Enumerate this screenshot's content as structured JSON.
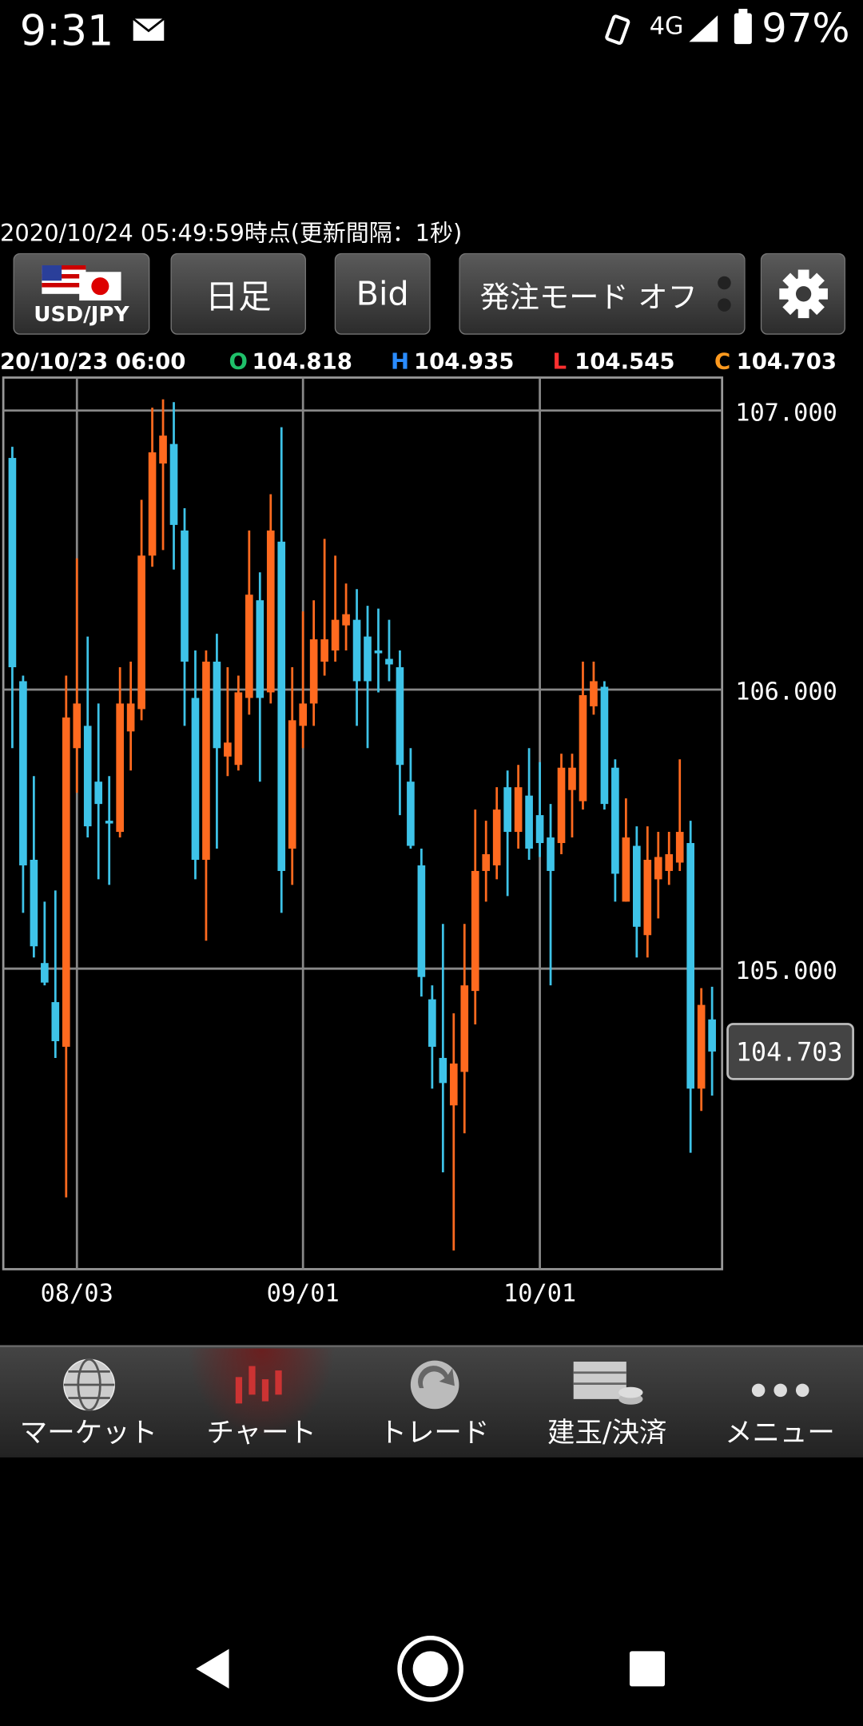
{
  "status_bar": {
    "time": "9:31",
    "network": "4G",
    "battery": "97%"
  },
  "timestamp": "2020/10/24  05:49:59時点(更新間隔：1秒)",
  "toolbar": {
    "pair": "USD/JPY",
    "period": "日足",
    "price_type": "Bid",
    "order_mode": "発注モード オフ"
  },
  "ohlc_header": {
    "date": "20/10/23 06:00",
    "o_label": "O",
    "o": "104.818",
    "h_label": "H",
    "h": "104.935",
    "l_label": "L",
    "l": "104.545",
    "c_label": "C",
    "c": "104.703"
  },
  "chart_data": {
    "type": "candlestick",
    "up_color": "#ff6a1f",
    "down_color": "#3ec3e8",
    "grid": true,
    "categories": [
      null,
      null,
      null,
      null,
      null,
      null,
      "08/03",
      null,
      null,
      null,
      null,
      null,
      null,
      null,
      null,
      null,
      null,
      null,
      null,
      null,
      null,
      null,
      null,
      null,
      null,
      null,
      null,
      "09/01",
      null,
      null,
      null,
      null,
      null,
      null,
      null,
      null,
      null,
      null,
      null,
      null,
      null,
      null,
      null,
      null,
      null,
      null,
      null,
      null,
      null,
      "10/01",
      null,
      null,
      null,
      null,
      null,
      null,
      null,
      null,
      null,
      null,
      null,
      null,
      null,
      null,
      null,
      null
    ],
    "open": [
      106.83,
      106.03,
      105.39,
      105.02,
      104.88,
      104.72,
      105.79,
      105.87,
      105.67,
      105.53,
      105.49,
      105.85,
      105.93,
      106.48,
      106.81,
      106.88,
      106.57,
      105.97,
      105.39,
      106.1,
      105.76,
      105.73,
      105.97,
      106.32,
      105.99,
      106.53,
      105.43,
      105.87,
      105.95,
      106.1,
      106.14,
      106.23,
      106.25,
      106.19,
      106.14,
      106.11,
      106.08,
      105.67,
      105.37,
      104.89,
      104.68,
      104.51,
      104.63,
      104.92,
      105.35,
      105.37,
      105.65,
      105.49,
      105.62,
      105.55,
      105.47,
      105.45,
      105.64,
      105.6,
      105.94,
      106.01,
      105.72,
      105.24,
      105.44,
      105.12,
      105.32,
      105.35,
      105.38,
      105.45,
      104.57,
      104.818
    ],
    "high": [
      106.87,
      106.05,
      105.69,
      105.24,
      105.28,
      106.05,
      106.47,
      106.19,
      105.95,
      105.69,
      106.08,
      106.1,
      106.68,
      107.01,
      107.04,
      107.03,
      106.65,
      106.14,
      106.14,
      106.2,
      106.08,
      106.05,
      106.57,
      106.42,
      106.7,
      106.94,
      106.08,
      106.28,
      106.32,
      106.54,
      106.48,
      106.38,
      106.36,
      106.3,
      106.29,
      106.25,
      106.14,
      105.79,
      105.43,
      104.94,
      105.16,
      104.84,
      105.16,
      105.57,
      105.53,
      105.65,
      105.71,
      105.73,
      105.79,
      105.74,
      105.59,
      105.77,
      105.77,
      106.1,
      106.1,
      106.03,
      105.75,
      105.61,
      105.51,
      105.51,
      105.49,
      105.49,
      105.75,
      105.53,
      104.93,
      104.935
    ],
    "low": [
      105.79,
      105.2,
      105.04,
      104.94,
      104.68,
      104.18,
      105.63,
      105.47,
      105.32,
      105.3,
      105.47,
      105.71,
      105.89,
      106.44,
      106.5,
      106.43,
      105.87,
      105.32,
      105.1,
      105.43,
      105.69,
      105.71,
      105.91,
      105.67,
      105.95,
      105.2,
      105.3,
      105.79,
      105.87,
      106.05,
      106.1,
      106.14,
      105.87,
      105.79,
      105.99,
      106.03,
      105.55,
      105.43,
      104.9,
      104.57,
      104.27,
      103.99,
      104.41,
      104.8,
      105.24,
      105.32,
      105.26,
      105.43,
      105.39,
      105.4,
      104.94,
      105.41,
      105.47,
      105.57,
      105.91,
      105.57,
      105.24,
      105.24,
      105.04,
      105.04,
      105.18,
      105.3,
      105.35,
      104.34,
      104.49,
      104.545
    ],
    "close": [
      106.08,
      105.37,
      105.08,
      104.95,
      104.74,
      105.9,
      105.95,
      105.51,
      105.59,
      105.52,
      105.95,
      105.95,
      106.48,
      106.85,
      106.91,
      106.59,
      106.1,
      105.39,
      106.1,
      105.79,
      105.81,
      105.99,
      106.34,
      105.97,
      106.57,
      105.35,
      105.89,
      105.95,
      106.18,
      106.18,
      106.25,
      106.27,
      106.03,
      106.03,
      106.13,
      106.09,
      105.73,
      105.44,
      104.97,
      104.72,
      104.59,
      104.66,
      104.94,
      105.35,
      105.41,
      105.57,
      105.49,
      105.65,
      105.43,
      105.45,
      105.35,
      105.72,
      105.72,
      105.98,
      106.03,
      105.59,
      105.34,
      105.47,
      105.15,
      105.39,
      105.4,
      105.41,
      105.49,
      104.57,
      104.87,
      104.703
    ],
    "ylim": [
      103.923,
      107.118
    ],
    "yticks": [
      {
        "value": 105,
        "label": "105.000"
      },
      {
        "value": 106,
        "label": "106.000"
      },
      {
        "value": 107,
        "label": "107.000"
      }
    ],
    "current_price": {
      "value": 104.703,
      "label": "104.703"
    }
  },
  "bottom_nav": [
    "マーケット",
    "チャート",
    "トレード",
    "建玉/決済",
    "メニュー"
  ]
}
